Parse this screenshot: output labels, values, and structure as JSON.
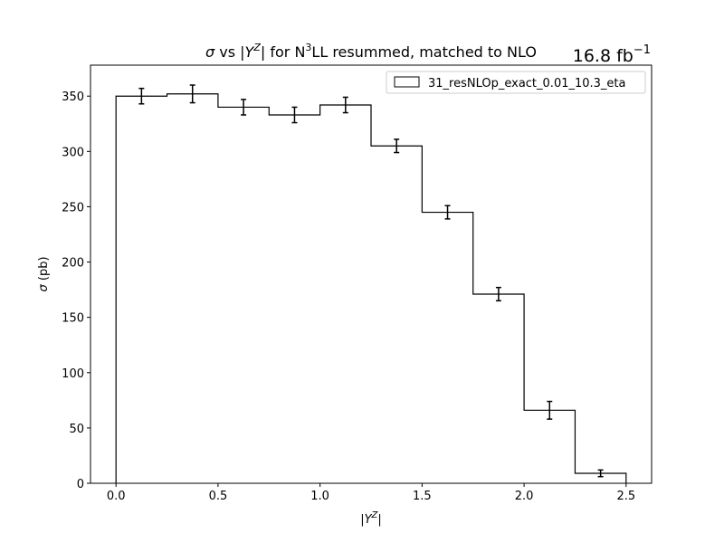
{
  "chart_data": {
    "type": "histogram",
    "title": "σ vs |Y^Z| for N^3LL resummed, matched to NLO",
    "title_parts": {
      "sigma": "σ",
      "vs": " vs |",
      "Y": "Y",
      "Z": "Z",
      "for": "| for N",
      "three": "3",
      "rest": "LL resummed, matched to NLO"
    },
    "luminosity": {
      "value": "16.8 fb",
      "exp": "−1"
    },
    "xlabel": {
      "open": "|",
      "Y": "Y",
      "Z": "Z",
      "close": "|"
    },
    "ylabel": {
      "sigma": "σ",
      "unit": " (pb)"
    },
    "xlim": [
      -0.125,
      2.625
    ],
    "ylim": [
      0,
      378
    ],
    "xticks": [
      0.0,
      0.5,
      1.0,
      1.5,
      2.0,
      2.5
    ],
    "xtick_labels": [
      "0.0",
      "0.5",
      "1.0",
      "1.5",
      "2.0",
      "2.5"
    ],
    "yticks": [
      0,
      50,
      100,
      150,
      200,
      250,
      300,
      350
    ],
    "ytick_labels": [
      "0",
      "50",
      "100",
      "150",
      "200",
      "250",
      "300",
      "350"
    ],
    "bin_edges": [
      0.0,
      0.25,
      0.5,
      0.75,
      1.0,
      1.25,
      1.5,
      1.75,
      2.0,
      2.25,
      2.5
    ],
    "series": [
      {
        "name": "31_resNLOp_exact_0.01_10.3_eta",
        "values": [
          350,
          352,
          340,
          333,
          342,
          305,
          245,
          171,
          66,
          9
        ],
        "errors": [
          7,
          8,
          7,
          7,
          7,
          6,
          6,
          6,
          8,
          3
        ],
        "color": "#000000"
      }
    ],
    "legend": {
      "position": "upper right"
    },
    "grid": false
  }
}
